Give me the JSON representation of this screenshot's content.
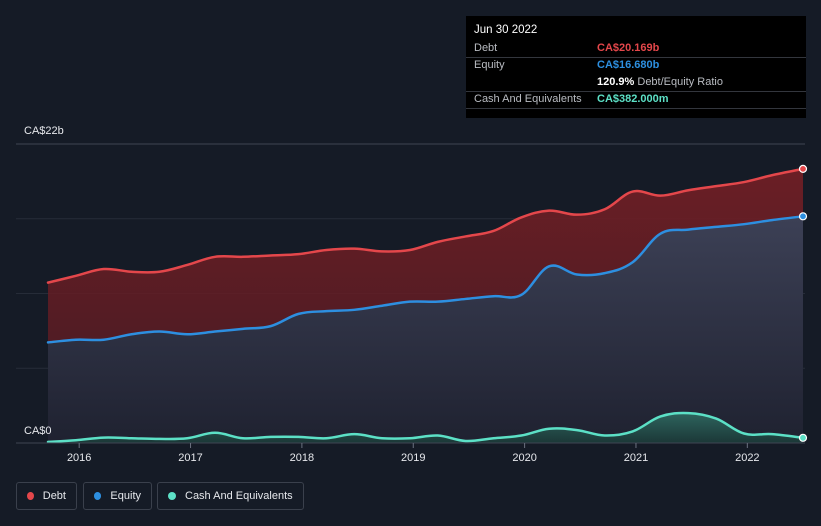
{
  "chart_data": {
    "type": "area",
    "title": "",
    "xlabel": "",
    "ylabel": "",
    "y_unit": "CA$b",
    "ylim": [
      0,
      22
    ],
    "y_tick_labels": [
      "CA$22b",
      "CA$0"
    ],
    "x_ticks": [
      2016,
      2017,
      2018,
      2019,
      2020,
      2021,
      2022
    ],
    "x_tick_labels": [
      "2016",
      "2017",
      "2018",
      "2019",
      "2020",
      "2021",
      "2022"
    ],
    "xlim": [
      2015.72,
      2022.5
    ],
    "grid": true,
    "legend_position": "bottom-left",
    "series": [
      {
        "name": "Debt",
        "color": "#e4474b",
        "x": [
          2015.72,
          2015.97,
          2016.22,
          2016.47,
          2016.72,
          2016.97,
          2017.22,
          2017.47,
          2017.72,
          2017.97,
          2018.22,
          2018.47,
          2018.72,
          2018.97,
          2019.22,
          2019.47,
          2019.72,
          2019.97,
          2020.22,
          2020.47,
          2020.72,
          2020.97,
          2021.22,
          2021.47,
          2021.72,
          2021.97,
          2022.22,
          2022.5
        ],
        "values": [
          11.8,
          12.3,
          12.8,
          12.6,
          12.6,
          13.1,
          13.7,
          13.7,
          13.8,
          13.9,
          14.2,
          14.3,
          14.1,
          14.2,
          14.8,
          15.2,
          15.6,
          16.6,
          17.1,
          16.8,
          17.2,
          18.5,
          18.2,
          18.6,
          18.9,
          19.2,
          19.7,
          20.169
        ]
      },
      {
        "name": "Equity",
        "color": "#2d8fe0",
        "x": [
          2015.72,
          2015.97,
          2016.22,
          2016.47,
          2016.72,
          2016.97,
          2017.22,
          2017.47,
          2017.72,
          2017.97,
          2018.22,
          2018.47,
          2018.72,
          2018.97,
          2019.22,
          2019.47,
          2019.72,
          2019.97,
          2020.22,
          2020.47,
          2020.72,
          2020.97,
          2021.22,
          2021.47,
          2021.72,
          2021.97,
          2022.22,
          2022.5
        ],
        "values": [
          7.4,
          7.6,
          7.6,
          8.0,
          8.2,
          8.0,
          8.2,
          8.4,
          8.6,
          9.5,
          9.7,
          9.8,
          10.1,
          10.4,
          10.4,
          10.6,
          10.8,
          10.9,
          13.0,
          12.4,
          12.5,
          13.3,
          15.4,
          15.7,
          15.9,
          16.1,
          16.4,
          16.68
        ]
      },
      {
        "name": "Cash And Equivalents",
        "color": "#5ce0c6",
        "x": [
          2015.72,
          2015.97,
          2016.22,
          2016.47,
          2016.72,
          2016.97,
          2017.22,
          2017.47,
          2017.72,
          2017.97,
          2018.22,
          2018.47,
          2018.72,
          2018.97,
          2019.22,
          2019.47,
          2019.72,
          2019.97,
          2020.22,
          2020.47,
          2020.72,
          2020.97,
          2021.22,
          2021.47,
          2021.72,
          2021.97,
          2022.22,
          2022.5
        ],
        "values": [
          0.08,
          0.2,
          0.4,
          0.35,
          0.3,
          0.35,
          0.75,
          0.35,
          0.45,
          0.45,
          0.35,
          0.65,
          0.35,
          0.35,
          0.55,
          0.15,
          0.35,
          0.55,
          1.05,
          0.95,
          0.55,
          0.85,
          1.95,
          2.2,
          1.8,
          0.7,
          0.65,
          0.382
        ]
      }
    ]
  },
  "tooltip": {
    "date": "Jun 30 2022",
    "debt_label": "Debt",
    "debt_value": "CA$20.169b",
    "equity_label": "Equity",
    "equity_value": "CA$16.680b",
    "ratio_value": "120.9%",
    "ratio_suffix": "Debt/Equity Ratio",
    "cash_label": "Cash And Equivalents",
    "cash_value": "CA$382.000m"
  },
  "legend": {
    "debt": "Debt",
    "equity": "Equity",
    "cash": "Cash And Equivalents"
  }
}
